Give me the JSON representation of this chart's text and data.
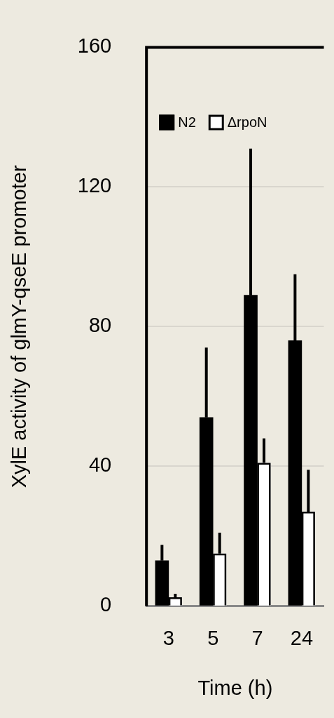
{
  "chart_data": {
    "type": "bar",
    "xlabel": "Time (h)",
    "ylabel": "XylE activity of glmY-qseE promoter",
    "categories": [
      "3",
      "5",
      "7",
      "24"
    ],
    "series": [
      {
        "name": "N2",
        "color": "#000000",
        "values": [
          13,
          54,
          89,
          76
        ],
        "errors": [
          [
            13,
            17.5
          ],
          [
            54,
            74
          ],
          [
            89,
            131
          ],
          [
            76,
            95
          ]
        ]
      },
      {
        "name": "ΔrpoN",
        "color": "#ffffff",
        "values": [
          2.5,
          15,
          41,
          27
        ],
        "errors": [
          [
            2.5,
            3.5
          ],
          [
            15,
            21
          ],
          [
            41,
            48
          ],
          [
            27,
            39
          ]
        ]
      }
    ],
    "ylim": [
      0,
      160
    ],
    "yticks": [
      0,
      40,
      80,
      120,
      160
    ],
    "grid": "y",
    "legend": "top left"
  }
}
